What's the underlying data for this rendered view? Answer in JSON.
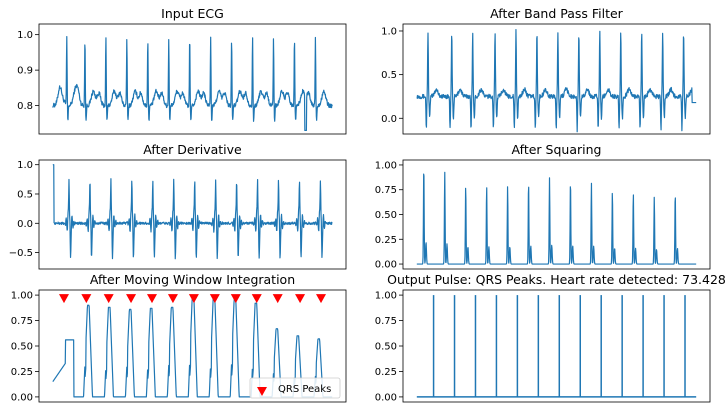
{
  "figure": {
    "background": "#ffffff",
    "line_color": "#1f77b4",
    "marker_color": "#ff0000"
  },
  "chart_data": [
    {
      "type": "line",
      "title": "Input ECG",
      "ylim": [
        0.72,
        1.03
      ],
      "yticks": [
        0.8,
        0.9,
        1.0
      ],
      "ytick_labels": [
        "0.8",
        "0.9",
        "1.0"
      ],
      "signal": {
        "kind": "ecg",
        "baseline": 0.8,
        "peak": 0.99,
        "trough": 0.73,
        "beat_x": [
          0.05,
          0.115,
          0.19,
          0.265,
          0.34,
          0.415,
          0.49,
          0.565,
          0.64,
          0.715,
          0.79,
          0.865,
          0.94
        ]
      },
      "series": [
        {
          "values": []
        }
      ]
    },
    {
      "type": "line",
      "title": "After Band Pass Filter",
      "ylim": [
        -0.18,
        1.08
      ],
      "yticks": [
        0.0,
        0.5,
        1.0
      ],
      "ytick_labels": [
        "0.0",
        "0.5",
        "1.0"
      ],
      "signal": {
        "kind": "bandpass",
        "baseline": 0.25,
        "peak": 1.0,
        "trough": -0.15,
        "beat_x": [
          0.04,
          0.125,
          0.2,
          0.28,
          0.355,
          0.43,
          0.505,
          0.58,
          0.655,
          0.73,
          0.805,
          0.88,
          0.955
        ]
      },
      "series": [
        {
          "values": []
        }
      ]
    },
    {
      "type": "line",
      "title": "After Derivative",
      "ylim": [
        -0.78,
        1.08
      ],
      "yticks": [
        -0.5,
        0.0,
        0.5,
        1.0
      ],
      "ytick_labels": [
        "−0.5",
        "0.0",
        "0.5",
        "1.0"
      ],
      "signal": {
        "kind": "derivative",
        "baseline": 0.0,
        "peak": 0.98,
        "trough": -0.7,
        "beat_x": [
          0.06,
          0.135,
          0.21,
          0.285,
          0.36,
          0.435,
          0.51,
          0.585,
          0.66,
          0.735,
          0.81,
          0.885,
          0.96
        ]
      },
      "series": [
        {
          "values": []
        }
      ]
    },
    {
      "type": "line",
      "title": "After Squaring",
      "ylim": [
        -0.05,
        1.05
      ],
      "yticks": [
        0.0,
        0.25,
        0.5,
        0.75,
        1.0
      ],
      "ytick_labels": [
        "0.00",
        "0.25",
        "0.50",
        "0.75",
        "1.00"
      ],
      "signal": {
        "kind": "squaring",
        "baseline": 0.0,
        "beat_x": [
          0.025,
          0.1,
          0.175,
          0.25,
          0.325,
          0.4,
          0.475,
          0.55,
          0.625,
          0.7,
          0.775,
          0.85,
          0.925
        ],
        "beat_h": [
          1.0,
          0.93,
          0.8,
          0.79,
          0.79,
          0.83,
          0.87,
          0.85,
          0.82,
          0.74,
          0.72,
          0.68,
          0.72
        ]
      },
      "series": [
        {
          "values": []
        }
      ]
    },
    {
      "type": "line",
      "title": "After Moving Window Integration",
      "ylim": [
        -0.05,
        1.05
      ],
      "yticks": [
        0.0,
        0.25,
        0.5,
        0.75,
        1.0
      ],
      "ytick_labels": [
        "0.00",
        "0.25",
        "0.50",
        "0.75",
        "1.00"
      ],
      "signal": {
        "kind": "mwi",
        "baseline": 0.0,
        "beat_x": [
          0.13,
          0.205,
          0.28,
          0.355,
          0.43,
          0.505,
          0.58,
          0.655,
          0.73,
          0.805,
          0.88,
          0.955
        ],
        "beat_h": [
          0.9,
          0.88,
          0.86,
          0.87,
          0.88,
          0.98,
          0.97,
          0.96,
          0.92,
          0.67,
          0.6,
          0.57
        ]
      },
      "markers": {
        "name": "QRS Peaks",
        "y": 0.97,
        "x": [
          0.04,
          0.12,
          0.2,
          0.28,
          0.355,
          0.43,
          0.505,
          0.58,
          0.655,
          0.73,
          0.805,
          0.885,
          0.96
        ]
      },
      "legend": {
        "label": "QRS Peaks",
        "position": "lower right"
      },
      "series": [
        {
          "values": []
        }
      ]
    },
    {
      "type": "line",
      "title": "Output Pulse: QRS Peaks. Heart rate detected: 73.428",
      "ylim": [
        -0.05,
        1.05
      ],
      "yticks": [
        0.0,
        0.25,
        0.5,
        0.75,
        1.0
      ],
      "ytick_labels": [
        "0.00",
        "0.25",
        "0.50",
        "0.75",
        "1.00"
      ],
      "signal": {
        "kind": "pulse",
        "baseline": 0.0,
        "beat_x": [
          0.06,
          0.135,
          0.21,
          0.285,
          0.36,
          0.435,
          0.51,
          0.585,
          0.66,
          0.735,
          0.81,
          0.885,
          0.96
        ]
      },
      "series": [
        {
          "values": []
        }
      ]
    }
  ]
}
